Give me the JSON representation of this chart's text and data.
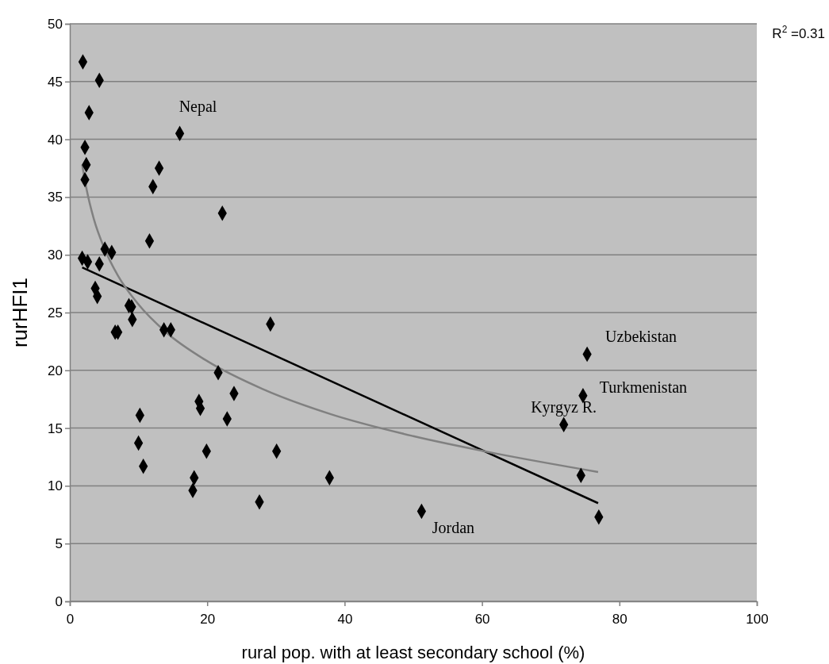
{
  "chart_data": {
    "type": "scatter",
    "xlabel": "rural pop. with at least secondary school (%)",
    "ylabel": "rurHFI1",
    "xlim": [
      0,
      100
    ],
    "xticks": [
      0,
      20,
      40,
      60,
      80,
      100
    ],
    "ylim": [
      0,
      50
    ],
    "yticks": [
      0,
      5,
      10,
      15,
      20,
      25,
      30,
      35,
      40,
      45,
      50
    ],
    "grid": "y",
    "series": [
      {
        "type": "scatter",
        "marker": "diamond",
        "color": "#000000",
        "x": [
          1.9,
          4.3,
          2.8,
          16.0,
          2.2,
          2.4,
          13.0,
          2.2,
          12.1,
          22.2,
          11.6,
          5.1,
          6.1,
          1.8,
          2.6,
          4.3,
          3.7,
          4.0,
          8.6,
          9.0,
          9.1,
          6.6,
          7.0,
          13.7,
          14.7,
          29.2,
          21.6,
          23.9,
          18.8,
          19.0,
          10.2,
          22.9,
          10.0,
          19.9,
          30.1,
          10.7,
          18.1,
          37.8,
          17.9,
          27.6,
          51.2,
          75.3,
          74.7,
          71.9,
          74.4,
          77.0
        ],
        "values": [
          46.7,
          45.1,
          42.3,
          40.5,
          39.3,
          37.8,
          37.5,
          36.5,
          35.9,
          33.6,
          31.2,
          30.5,
          30.2,
          29.7,
          29.4,
          29.2,
          27.1,
          26.4,
          25.6,
          25.5,
          24.4,
          23.3,
          23.3,
          23.5,
          23.5,
          24.0,
          19.8,
          18.0,
          17.3,
          16.7,
          16.1,
          15.8,
          13.7,
          13.0,
          13.0,
          11.7,
          10.7,
          10.7,
          9.6,
          8.6,
          7.8,
          21.4,
          17.8,
          15.3,
          10.9,
          7.3
        ]
      },
      {
        "type": "line",
        "color": "#000000",
        "x": [
          1.8,
          76.9
        ],
        "values": [
          28.9,
          8.5
        ]
      },
      {
        "type": "line",
        "color": "#808080",
        "x": [
          1.8,
          2.5,
          3.5,
          5,
          7,
          10,
          14,
          20,
          28,
          38,
          50,
          62,
          76.9
        ],
        "values": [
          37.8,
          35.5,
          33.1,
          30.6,
          28.2,
          25.7,
          23.3,
          20.8,
          18.4,
          16.2,
          14.3,
          12.8,
          11.2
        ]
      }
    ],
    "annotations": [
      {
        "text": "Nepal",
        "x": 16.0,
        "y": 40.5
      },
      {
        "text": "Uzbekistan",
        "x": 75.3,
        "y": 21.4
      },
      {
        "text": "Turkmenistan",
        "x": 74.7,
        "y": 17.8
      },
      {
        "text": "Kyrgyz R.",
        "x": 71.9,
        "y": 15.3
      },
      {
        "text": "Jordan",
        "x": 51.2,
        "y": 7.8
      },
      "R$^{2}$ =0.31"
    ]
  }
}
